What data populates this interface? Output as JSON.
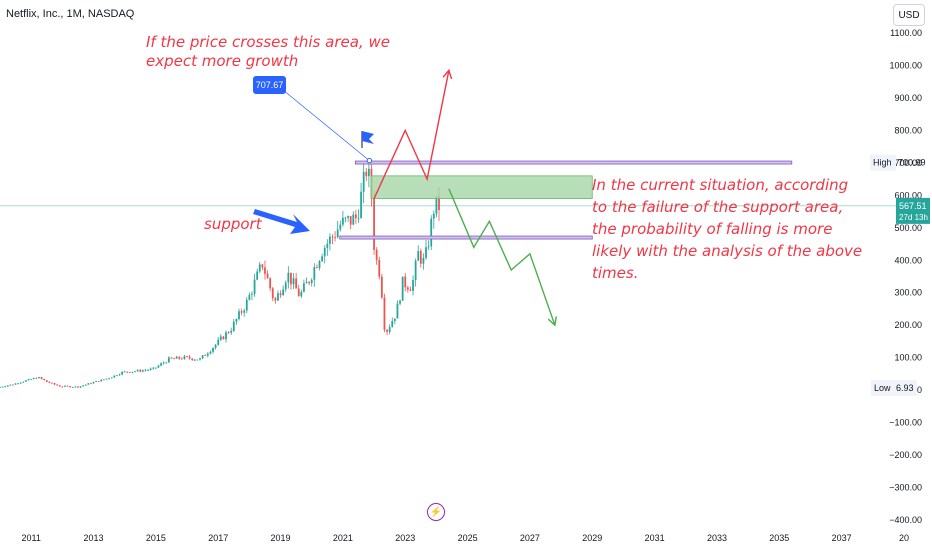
{
  "header": {
    "title": "Netflix, Inc., 1M, NASDAQ",
    "currency": "USD"
  },
  "annotations": {
    "top_note": [
      "If the price crosses this area, we",
      "expect more growth"
    ],
    "support": "support",
    "right_note": [
      "In the current situation, according",
      "to the failure of the support area,",
      "the probability of falling is more",
      "likely with the analysis of the above",
      "times."
    ],
    "flag_price": "707.67"
  },
  "labels": {
    "high": "High",
    "high_value": "700.99",
    "low": "Low",
    "low_value": "6.93",
    "last_price": "567.51",
    "countdown": "27d 13h"
  },
  "colors": {
    "up": "#26a69a",
    "down": "#ef5350",
    "annotation": "#f23645",
    "forecast_up": "#f23645",
    "forecast_down": "#4caf50",
    "zone": "#a5d6a7",
    "level": "#7e57c2",
    "blue": "#2962ff"
  },
  "chart_data": {
    "type": "candlestick",
    "title": "Netflix, Inc., 1M, NASDAQ",
    "ylim": [
      -400,
      1100
    ],
    "y_ticks": [
      "1100.00",
      "1000.00",
      "900.00",
      "800.00",
      "700.00",
      "600.00",
      "500.00",
      "400.00",
      "300.00",
      "200.00",
      "100.00",
      "0",
      "−100.00",
      "−200.00",
      "−300.00",
      "−400.00"
    ],
    "x_ticks": [
      "2011",
      "2013",
      "2015",
      "2017",
      "2019",
      "2021",
      "2023",
      "2025",
      "2027",
      "2029",
      "2031",
      "2033",
      "2035",
      "2037",
      "20"
    ],
    "price_path": [
      [
        2010.0,
        8
      ],
      [
        2010.5,
        18
      ],
      [
        2011.3,
        40
      ],
      [
        2011.6,
        25
      ],
      [
        2012.0,
        12
      ],
      [
        2012.6,
        10
      ],
      [
        2013.0,
        22
      ],
      [
        2013.6,
        38
      ],
      [
        2014.0,
        55
      ],
      [
        2014.6,
        60
      ],
      [
        2015.0,
        65
      ],
      [
        2015.5,
        95
      ],
      [
        2016.0,
        100
      ],
      [
        2016.5,
        95
      ],
      [
        2017.0,
        140
      ],
      [
        2017.5,
        190
      ],
      [
        2018.0,
        270
      ],
      [
        2018.5,
        390
      ],
      [
        2018.9,
        270
      ],
      [
        2019.3,
        360
      ],
      [
        2019.7,
        290
      ],
      [
        2020.0,
        340
      ],
      [
        2020.4,
        430
      ],
      [
        2020.8,
        480
      ],
      [
        2021.0,
        510
      ],
      [
        2021.5,
        530
      ],
      [
        2021.7,
        610
      ],
      [
        2021.85,
        690
      ],
      [
        2022.0,
        600
      ],
      [
        2022.1,
        420
      ],
      [
        2022.3,
        350
      ],
      [
        2022.4,
        200
      ],
      [
        2022.5,
        185
      ],
      [
        2022.8,
        240
      ],
      [
        2023.0,
        330
      ],
      [
        2023.3,
        320
      ],
      [
        2023.5,
        420
      ],
      [
        2023.7,
        390
      ],
      [
        2023.85,
        470
      ],
      [
        2024.0,
        560
      ],
      [
        2024.1,
        567.51
      ]
    ],
    "zones": [
      {
        "name": "resistance-zone",
        "y_top": 660,
        "y_bottom": 590,
        "x_start": 2021.9,
        "x_end": 2029.0
      }
    ],
    "levels": [
      {
        "name": "high-level",
        "value": 700.99,
        "x_start": 2021.4,
        "x_end": 2035.4
      },
      {
        "name": "support-level",
        "value": 470,
        "x_start": 2020.9,
        "x_end": 2029.0
      }
    ],
    "forecast_up": [
      [
        2022.0,
        590
      ],
      [
        2023.0,
        800
      ],
      [
        2023.7,
        650
      ],
      [
        2024.4,
        985
      ]
    ],
    "forecast_down": [
      [
        2024.4,
        620
      ],
      [
        2025.2,
        440
      ],
      [
        2025.7,
        520
      ],
      [
        2026.4,
        370
      ],
      [
        2027.0,
        420
      ],
      [
        2027.8,
        200
      ]
    ],
    "high": 700.99,
    "low": 6.93,
    "last": 567.51
  }
}
